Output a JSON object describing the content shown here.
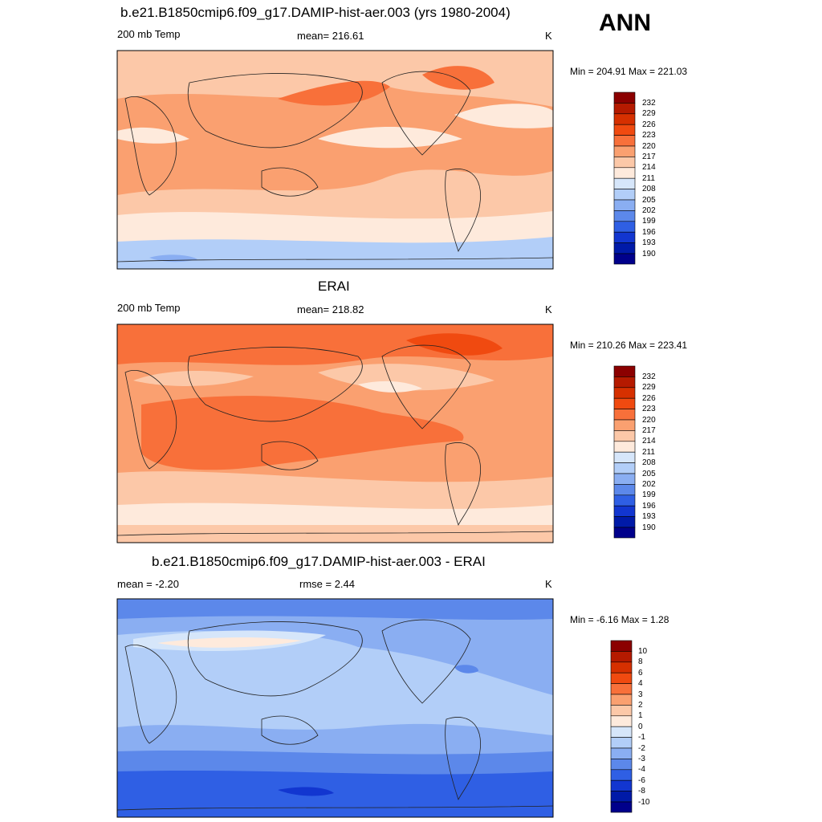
{
  "season": "ANN",
  "panels": [
    {
      "title": "b.e21.B1850cmip6.f09_g17.DAMIP-hist-aer.003 (yrs 1980-2004)",
      "left_label": "200 mb Temp",
      "center_label": "mean= 216.61",
      "units": "K",
      "minmax": "Min = 204.91 Max = 221.03",
      "colorbar_labels": [
        "232",
        "229",
        "226",
        "223",
        "220",
        "217",
        "214",
        "211",
        "208",
        "205",
        "202",
        "199",
        "196",
        "193",
        "190"
      ]
    },
    {
      "title": "ERAI",
      "left_label": "200 mb Temp",
      "center_label": "mean= 218.82",
      "units": "K",
      "minmax": "Min = 210.26 Max = 223.41",
      "colorbar_labels": [
        "232",
        "229",
        "226",
        "223",
        "220",
        "217",
        "214",
        "211",
        "208",
        "205",
        "202",
        "199",
        "196",
        "193",
        "190"
      ]
    },
    {
      "title": "b.e21.B1850cmip6.f09_g17.DAMIP-hist-aer.003 - ERAI",
      "left_label": "mean =  -2.20",
      "center_label": "rmse =   2.44",
      "units": "K",
      "minmax": "Min =  -6.16 Max =   1.28",
      "colorbar_labels": [
        "10",
        "8",
        "6",
        "4",
        "3",
        "2",
        "1",
        "0",
        "-1",
        "-2",
        "-3",
        "-4",
        "-6",
        "-8",
        "-10"
      ]
    }
  ],
  "colors": {
    "levels": [
      "#8b0000",
      "#b51a00",
      "#d63000",
      "#f04a10",
      "#f8703a",
      "#faa070",
      "#fcc8a8",
      "#feeadc",
      "#d6e6fa",
      "#b2cef8",
      "#8aaef2",
      "#5c88ea",
      "#2f5fe4",
      "#1236d0",
      "#001aa8",
      "#00008b"
    ],
    "coast": "#222222"
  }
}
